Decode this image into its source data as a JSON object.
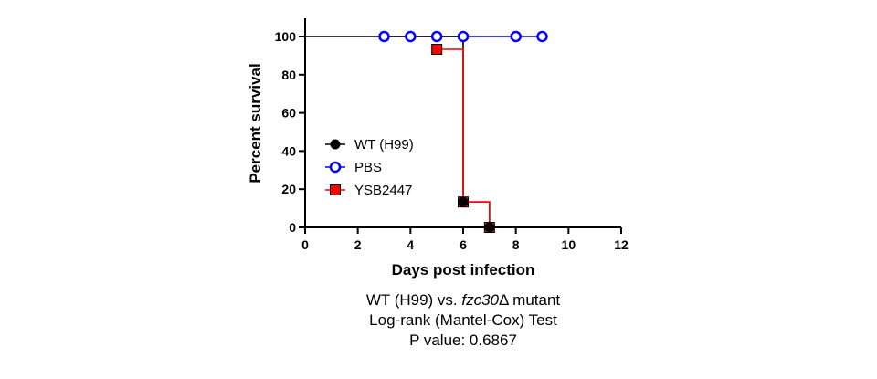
{
  "chart_data": {
    "type": "line",
    "subtype": "kaplan-meier-step",
    "xlabel": "Days post infection",
    "ylabel": "Percent survival",
    "xlim": [
      0,
      12
    ],
    "ylim": [
      0,
      100
    ],
    "xticks": [
      0,
      2,
      4,
      6,
      8,
      10,
      12
    ],
    "yticks": [
      0,
      20,
      40,
      60,
      80,
      100
    ],
    "grid": false,
    "legend_position": "left",
    "series": [
      {
        "name": "WT (H99)",
        "color": "#000000",
        "marker": "filled-circle",
        "steps": [
          [
            0,
            100
          ],
          [
            6,
            100
          ],
          [
            6,
            13.3
          ],
          [
            7,
            13.3
          ],
          [
            7,
            0
          ],
          [
            12,
            0
          ]
        ],
        "markers": [
          [
            6,
            13.3
          ],
          [
            7,
            0
          ]
        ]
      },
      {
        "name": "PBS",
        "color": "#0000ff",
        "marker": "open-circle",
        "steps": [
          [
            3,
            100
          ],
          [
            9,
            100
          ]
        ],
        "markers": [
          [
            3,
            100
          ],
          [
            4,
            100
          ],
          [
            5,
            100
          ],
          [
            6,
            100
          ],
          [
            8,
            100
          ],
          [
            9,
            100
          ]
        ]
      },
      {
        "name": "YSB2447",
        "color": "#ff0000",
        "marker": "filled-square",
        "steps": [
          [
            5,
            93.3
          ],
          [
            6,
            93.3
          ],
          [
            6,
            13.3
          ],
          [
            7,
            13.3
          ],
          [
            7,
            0
          ]
        ],
        "markers": [
          [
            5,
            93.3
          ],
          [
            6,
            13.3
          ],
          [
            7,
            0
          ]
        ]
      }
    ]
  },
  "caption": {
    "line1_prefix": "WT (H99) vs. ",
    "line1_italic": "fzc30",
    "line1_suffix": "Δ mutant",
    "line2": "Log-rank (Mantel-Cox) Test",
    "line3": "P value: 0.6867"
  }
}
